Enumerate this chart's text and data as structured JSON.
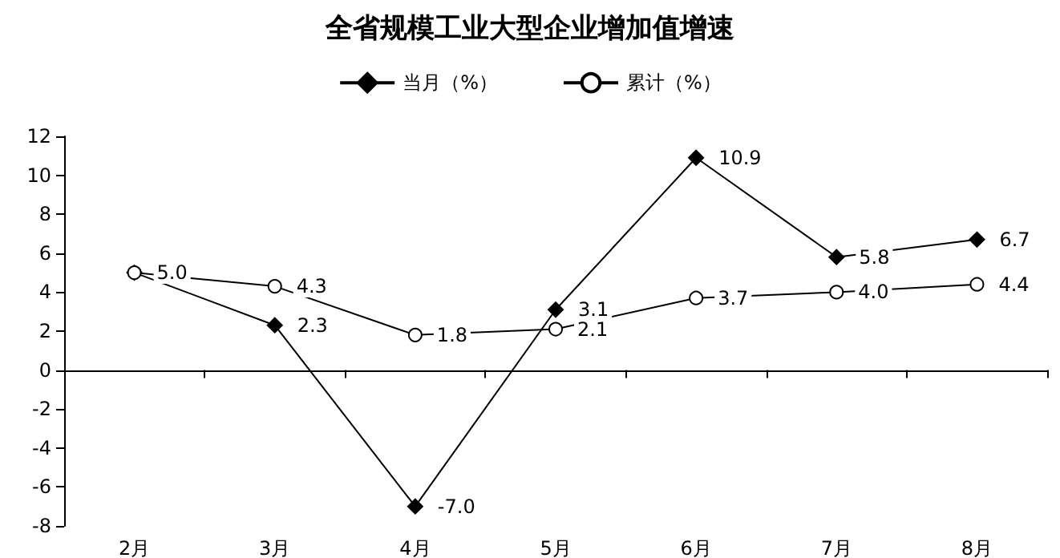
{
  "chart_data": {
    "type": "line",
    "title": "全省规模工业大型企业增加值增速",
    "categories": [
      "2月",
      "3月",
      "4月",
      "5月",
      "6月",
      "7月",
      "8月"
    ],
    "series": [
      {
        "name": "当月（%）",
        "color": "#000000",
        "marker": "diamond",
        "values": [
          5.0,
          2.3,
          -7.0,
          3.1,
          10.9,
          5.8,
          6.7
        ],
        "value_labels": [
          "5.0",
          "2.3",
          "-7.0",
          "3.1",
          "10.9",
          "5.8",
          "6.7"
        ]
      },
      {
        "name": "累计（%）",
        "color": "#000000",
        "marker": "circle",
        "values": [
          5.0,
          4.3,
          1.8,
          2.1,
          3.7,
          4.0,
          4.4
        ],
        "value_labels": [
          null,
          "4.3",
          "1.8",
          "2.1",
          "3.7",
          "4.0",
          "4.4"
        ]
      }
    ],
    "ylim": [
      -8,
      12
    ],
    "yticks": [
      -8,
      -6,
      -4,
      -2,
      0,
      2,
      4,
      6,
      8,
      10,
      12
    ],
    "legend": "top",
    "line_style": "solid"
  }
}
